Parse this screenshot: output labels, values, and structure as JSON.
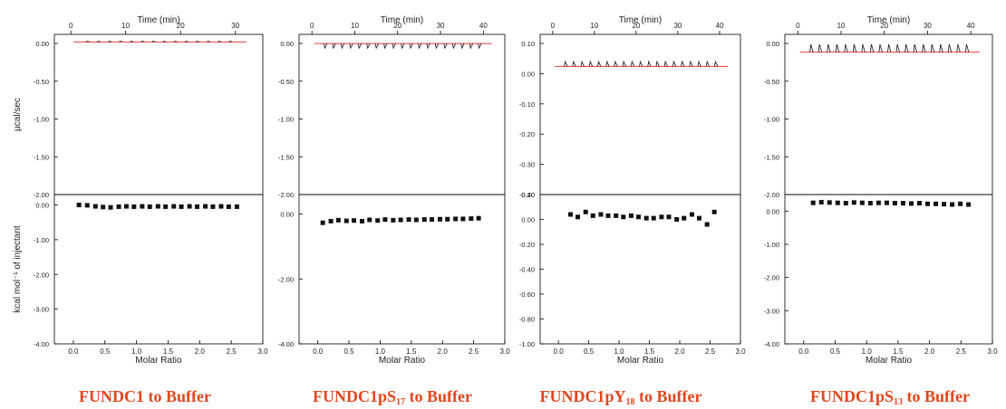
{
  "colors": {
    "caption": "#e2461e",
    "fit": "#e23b3b",
    "raw": "#111111",
    "axis": "#000000"
  },
  "chart_data": [
    {
      "type": "scatter",
      "caption": {
        "main": "FUNDC1 to Buffer",
        "sub": "",
        "tail": ""
      },
      "top": {
        "xlabel": "Time (min)",
        "xticks": [
          0,
          10,
          20,
          30
        ],
        "xlim": [
          -3,
          35
        ],
        "ylabel": "µcal/sec",
        "ylim": [
          -2.0,
          0.1
        ],
        "yticks": [
          "0.00",
          "-0.50",
          "-1.00",
          "-1.50",
          "-2.00"
        ],
        "injection_times": [
          3,
          5,
          7,
          9,
          11,
          13,
          15,
          17,
          19,
          21,
          23,
          25,
          27,
          29
        ],
        "peak_height": 0.012,
        "baseline": 0.0
      },
      "bottom": {
        "xlabel": "Molar Ratio",
        "xlim": [
          -0.3,
          3.0
        ],
        "xticks": [
          "0.0",
          "0.5",
          "1.0",
          "1.5",
          "2.0",
          "2.5",
          "3.0"
        ],
        "ylabel": "kcal mol⁻¹ of injectant",
        "ylim": [
          -4.0,
          0.3
        ],
        "yticks": [
          "0.00",
          "-1.00",
          "-2.00",
          "-3.00",
          "-4.00"
        ],
        "x": [
          0.09,
          0.22,
          0.35,
          0.47,
          0.59,
          0.72,
          0.84,
          0.96,
          1.09,
          1.21,
          1.34,
          1.46,
          1.59,
          1.71,
          1.84,
          1.96,
          2.09,
          2.21,
          2.34,
          2.46,
          2.59
        ],
        "y": [
          0.0,
          -0.01,
          -0.04,
          -0.06,
          -0.07,
          -0.05,
          -0.04,
          -0.05,
          -0.04,
          -0.05,
          -0.04,
          -0.05,
          -0.04,
          -0.05,
          -0.04,
          -0.05,
          -0.04,
          -0.05,
          -0.04,
          -0.05,
          -0.05
        ]
      }
    },
    {
      "type": "scatter",
      "caption": {
        "main": "FUNDC1pS",
        "sub": "17",
        "tail": " to Buffer"
      },
      "top": {
        "xlabel": "Time (min)",
        "xticks": [
          0,
          10,
          20,
          30,
          40
        ],
        "xlim": [
          -3,
          45
        ],
        "ylabel": "",
        "ylim": [
          -2.0,
          0.1
        ],
        "yticks": [
          "0.00",
          "-0.50",
          "-1.00",
          "-1.50",
          "-2.00"
        ],
        "injection_times": [
          3,
          5,
          7,
          9,
          11,
          13,
          15,
          17,
          19,
          21,
          23,
          25,
          27,
          29,
          31,
          33,
          35,
          37,
          39
        ],
        "peak_height": -0.06,
        "baseline": -0.02
      },
      "bottom": {
        "xlabel": "Molar Ratio",
        "xlim": [
          -0.3,
          3.0
        ],
        "xticks": [
          "0.0",
          "0.5",
          "1.0",
          "1.5",
          "2.0",
          "2.5",
          "3.0"
        ],
        "ylabel": "",
        "ylim": [
          -4.0,
          0.6
        ],
        "yticks": [
          "0.00",
          "-2.00",
          "-4.00"
        ],
        "x": [
          0.08,
          0.21,
          0.33,
          0.46,
          0.58,
          0.71,
          0.83,
          0.96,
          1.08,
          1.21,
          1.33,
          1.46,
          1.58,
          1.71,
          1.83,
          1.96,
          2.08,
          2.21,
          2.33,
          2.46,
          2.58
        ],
        "y": [
          -0.27,
          -0.22,
          -0.19,
          -0.21,
          -0.2,
          -0.22,
          -0.18,
          -0.2,
          -0.17,
          -0.19,
          -0.18,
          -0.17,
          -0.18,
          -0.17,
          -0.17,
          -0.16,
          -0.16,
          -0.15,
          -0.15,
          -0.14,
          -0.13
        ]
      }
    },
    {
      "type": "scatter",
      "caption": {
        "main": "FUNDC1pY",
        "sub": "18",
        "tail": " to Buffer"
      },
      "top": {
        "xlabel": "Time (min)",
        "xticks": [
          0,
          10,
          20,
          30,
          40
        ],
        "xlim": [
          -3,
          45
        ],
        "ylabel": "",
        "ylim": [
          -0.4,
          0.1
        ],
        "yticks": [
          "0.10",
          "0.00",
          "-0.10",
          "-0.20",
          "-0.30",
          "-0.40"
        ],
        "injection_times": [
          3,
          5,
          7,
          9,
          11,
          13,
          15,
          17,
          19,
          21,
          23,
          25,
          27,
          29,
          31,
          33,
          35,
          37,
          39
        ],
        "peak_height": 0.015,
        "baseline": 0.0
      },
      "bottom": {
        "xlabel": "Molar Ratio",
        "xlim": [
          -0.3,
          3.0
        ],
        "xticks": [
          "0.0",
          "0.5",
          "1.0",
          "1.5",
          "2.0",
          "2.5",
          "3.0"
        ],
        "ylabel": "",
        "ylim": [
          -1.0,
          0.2
        ],
        "yticks": [
          "0.20",
          "0.00",
          "-0.20",
          "-0.40",
          "-0.60",
          "-0.80",
          "-1.00"
        ],
        "x": [
          0.2,
          0.32,
          0.45,
          0.57,
          0.7,
          0.82,
          0.95,
          1.07,
          1.2,
          1.32,
          1.45,
          1.57,
          1.7,
          1.82,
          1.95,
          2.07,
          2.2,
          2.32,
          2.45,
          2.57
        ],
        "y": [
          0.04,
          0.02,
          0.06,
          0.03,
          0.04,
          0.03,
          0.03,
          0.02,
          0.03,
          0.02,
          0.01,
          0.01,
          0.02,
          0.02,
          0.0,
          0.01,
          0.04,
          0.01,
          -0.04,
          0.06
        ]
      }
    },
    {
      "type": "scatter",
      "caption": {
        "main": "FUNDC1pS",
        "sub": "13",
        "tail": " to Buffer"
      },
      "top": {
        "xlabel": "Time (min)",
        "xticks": [
          0,
          10,
          20,
          30,
          40
        ],
        "xlim": [
          -3,
          45
        ],
        "ylabel": "",
        "ylim": [
          -2.0,
          0.25
        ],
        "yticks": [
          "0.00",
          "-0.50",
          "-1.00",
          "-1.50",
          "-2.00"
        ],
        "injection_times": [
          3,
          5,
          7,
          9,
          11,
          13,
          15,
          17,
          19,
          21,
          23,
          25,
          27,
          29,
          31,
          33,
          35,
          37,
          39
        ],
        "peak_height": 0.11,
        "baseline": 0.0
      },
      "bottom": {
        "xlabel": "Molar Ratio",
        "xlim": [
          -0.3,
          3.0
        ],
        "xticks": [
          "0.0",
          "0.5",
          "1.0",
          "1.5",
          "2.0",
          "2.5",
          "3.0"
        ],
        "ylabel": "",
        "ylim": [
          -4.0,
          0.5
        ],
        "yticks": [
          "0.00",
          "-1.00",
          "-2.00",
          "-3.00",
          "-4.00"
        ],
        "x": [
          0.15,
          0.28,
          0.41,
          0.54,
          0.67,
          0.8,
          0.93,
          1.06,
          1.19,
          1.32,
          1.45,
          1.58,
          1.71,
          1.84,
          1.97,
          2.1,
          2.23,
          2.36,
          2.49,
          2.62
        ],
        "y": [
          0.25,
          0.27,
          0.26,
          0.25,
          0.24,
          0.26,
          0.25,
          0.24,
          0.25,
          0.25,
          0.24,
          0.24,
          0.23,
          0.24,
          0.22,
          0.22,
          0.21,
          0.2,
          0.22,
          0.2
        ]
      }
    }
  ]
}
